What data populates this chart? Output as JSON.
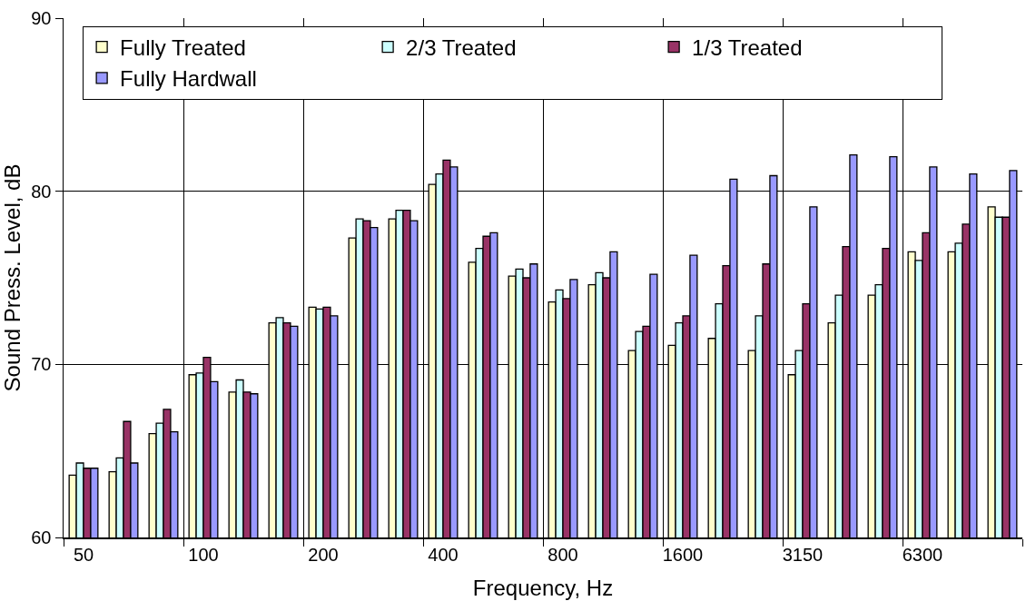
{
  "chart_data": {
    "type": "bar",
    "xlabel": "Frequency, Hz",
    "ylabel": "Sound Press. Level, dB",
    "categories": [
      "50",
      null,
      null,
      "100",
      null,
      null,
      "200",
      null,
      null,
      "400",
      null,
      null,
      "800",
      null,
      null,
      "1600",
      null,
      null,
      "3150",
      null,
      null,
      "6300",
      null,
      null
    ],
    "series": [
      {
        "name": "Fully Treated",
        "color": "#ffffcc",
        "values": [
          63.6,
          63.8,
          66.0,
          69.4,
          68.4,
          72.4,
          73.3,
          77.3,
          78.4,
          80.4,
          75.9,
          75.1,
          73.6,
          74.6,
          70.8,
          71.1,
          71.5,
          70.8,
          69.4,
          72.4,
          74.0,
          76.5,
          76.5,
          79.1
        ]
      },
      {
        "name": "2/3 Treated",
        "color": "#ccffff",
        "values": [
          64.3,
          64.6,
          66.6,
          69.5,
          69.1,
          72.7,
          73.2,
          78.4,
          78.9,
          81.0,
          76.7,
          75.5,
          74.3,
          75.3,
          71.9,
          72.4,
          73.5,
          72.8,
          70.8,
          74.0,
          74.6,
          76.0,
          77.0,
          78.5
        ]
      },
      {
        "name": "1/3 Treated",
        "color": "#993366",
        "values": [
          64.0,
          66.7,
          67.4,
          70.4,
          68.4,
          72.4,
          73.3,
          78.3,
          78.9,
          81.8,
          77.4,
          75.0,
          73.8,
          75.0,
          72.2,
          72.8,
          75.7,
          75.8,
          73.5,
          76.8,
          76.7,
          77.6,
          78.1,
          78.5
        ]
      },
      {
        "name": "Fully Hardwall",
        "color": "#9999ff",
        "values": [
          64.0,
          64.3,
          66.1,
          69.0,
          68.3,
          72.2,
          72.8,
          77.9,
          78.3,
          81.4,
          77.6,
          75.8,
          74.9,
          76.5,
          75.2,
          76.3,
          80.7,
          80.9,
          79.1,
          82.1,
          82.0,
          81.4,
          81.0,
          81.2
        ]
      }
    ],
    "ylim": [
      60,
      90
    ],
    "yticks": [
      60,
      70,
      80,
      90
    ],
    "grid": true,
    "legend": "top left"
  }
}
